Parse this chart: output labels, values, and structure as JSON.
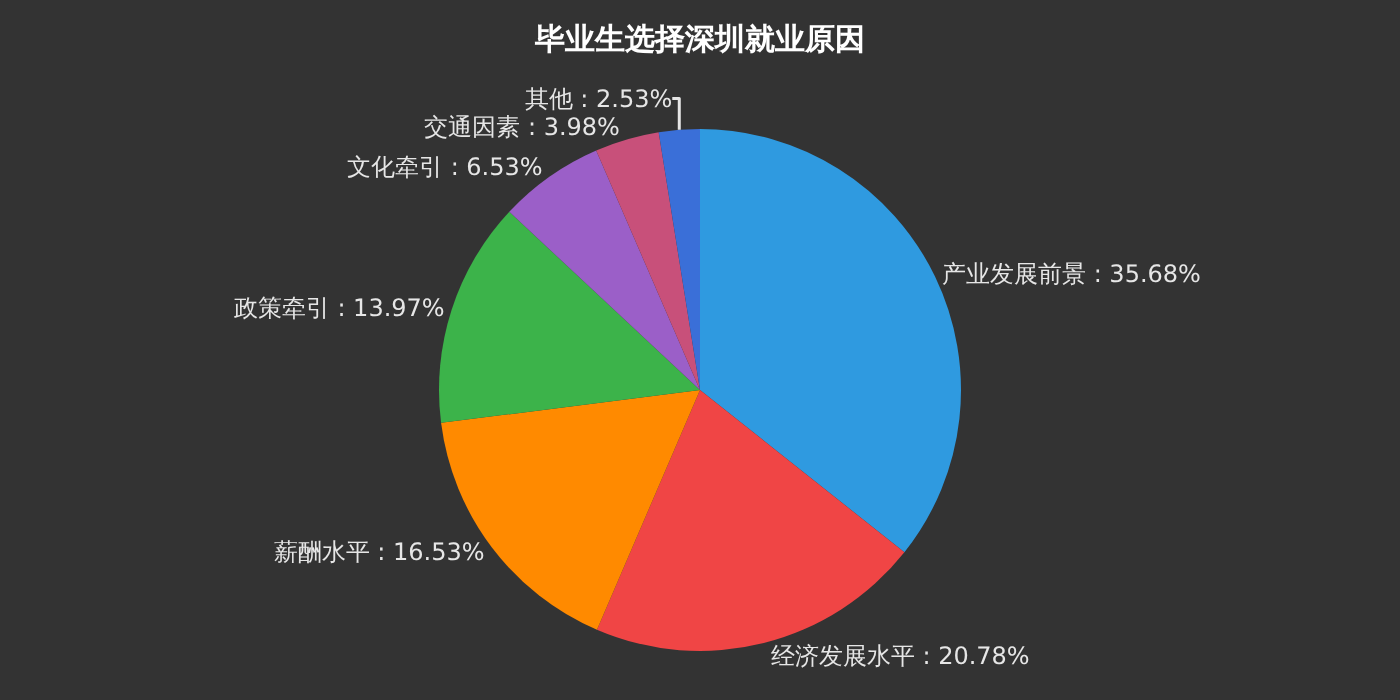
{
  "chart_data": {
    "type": "pie",
    "title": "毕业生选择深圳就业原因",
    "categories": [
      "产业发展前景",
      "经济发展水平",
      "薪酬水平",
      "政策牵引",
      "文化牵引",
      "交通因素",
      "其他"
    ],
    "values": [
      35.68,
      20.78,
      16.53,
      13.97,
      6.53,
      3.98,
      2.53
    ],
    "value_labels": [
      ": 35.68%",
      ": 20.78%",
      ": 16.53%",
      ": 13.97%",
      ": 6.53%",
      ": 3.98%",
      ": 2.53%"
    ],
    "colors": [
      "#2f9ae0",
      "#f04545",
      "#ff8a00",
      "#3cb34a",
      "#9b5fc8",
      "#c8507a",
      "#3a6fd8"
    ]
  }
}
